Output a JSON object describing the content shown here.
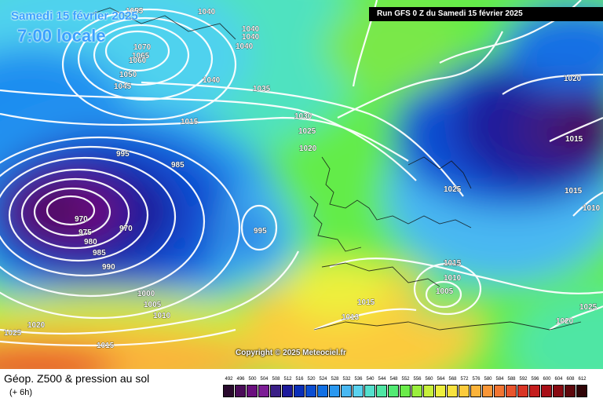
{
  "header": {
    "date_text": "Samedi 15 février 2025",
    "time_text": "7:00 locale",
    "run_text": "Run GFS 0 Z du Samedi 15 février 2025"
  },
  "copyright": "Copyright © 2025 Meteociel.fr",
  "footer": {
    "title": "Géop. Z500 & pression au sol",
    "subtitle": "(+ 6h)"
  },
  "legend": {
    "values": [
      "492",
      "496",
      "500",
      "504",
      "508",
      "512",
      "516",
      "520",
      "524",
      "528",
      "532",
      "536",
      "540",
      "544",
      "548",
      "552",
      "556",
      "560",
      "564",
      "568",
      "572",
      "576",
      "580",
      "584",
      "588",
      "592",
      "596",
      "600",
      "604",
      "608",
      "612"
    ],
    "colors": [
      "#2a0a2e",
      "#4a0c58",
      "#6a0f7e",
      "#7c1d95",
      "#3a1f86",
      "#1d1a9c",
      "#0a2fb8",
      "#0b4ed2",
      "#1270e4",
      "#2a98f0",
      "#49b8f2",
      "#5ad2ef",
      "#55e0cd",
      "#4fe6a4",
      "#52ea73",
      "#6aec4a",
      "#9aee3d",
      "#c8f03c",
      "#eef03e",
      "#f8e23e",
      "#fccb3c",
      "#fcb33a",
      "#f99637",
      "#f27532",
      "#e8542c",
      "#d93525",
      "#c41d1d",
      "#a80f17",
      "#880a12",
      "#5e070c",
      "#300407"
    ]
  },
  "pressure_labels": [
    {
      "text": "1040"
    },
    {
      "text": "1055"
    },
    {
      "text": "1040"
    },
    {
      "text": "1040"
    },
    {
      "text": "1040"
    },
    {
      "text": "1070"
    },
    {
      "text": "1065"
    },
    {
      "text": "1060"
    },
    {
      "text": "1050"
    },
    {
      "text": "1045"
    },
    {
      "text": "1040"
    },
    {
      "text": "1035"
    },
    {
      "text": "1030"
    },
    {
      "text": "1025"
    },
    {
      "text": "1020"
    },
    {
      "text": "1015"
    },
    {
      "text": "995"
    },
    {
      "text": "985"
    },
    {
      "text": "970"
    },
    {
      "text": "975"
    },
    {
      "text": "980"
    },
    {
      "text": "985"
    },
    {
      "text": "990"
    },
    {
      "text": "970"
    },
    {
      "text": "995"
    },
    {
      "text": "1000"
    },
    {
      "text": "1005"
    },
    {
      "text": "1010"
    },
    {
      "text": "1020"
    },
    {
      "text": "1025"
    },
    {
      "text": "1015"
    },
    {
      "text": "1025"
    },
    {
      "text": "1015"
    },
    {
      "text": "1013"
    },
    {
      "text": "1010"
    },
    {
      "text": "1005"
    },
    {
      "text": "1015"
    },
    {
      "text": "1013"
    },
    {
      "text": "1020"
    },
    {
      "text": "1025"
    },
    {
      "text": "1020"
    },
    {
      "text": "1015"
    },
    {
      "text": "1015"
    },
    {
      "text": "1010"
    }
  ]
}
